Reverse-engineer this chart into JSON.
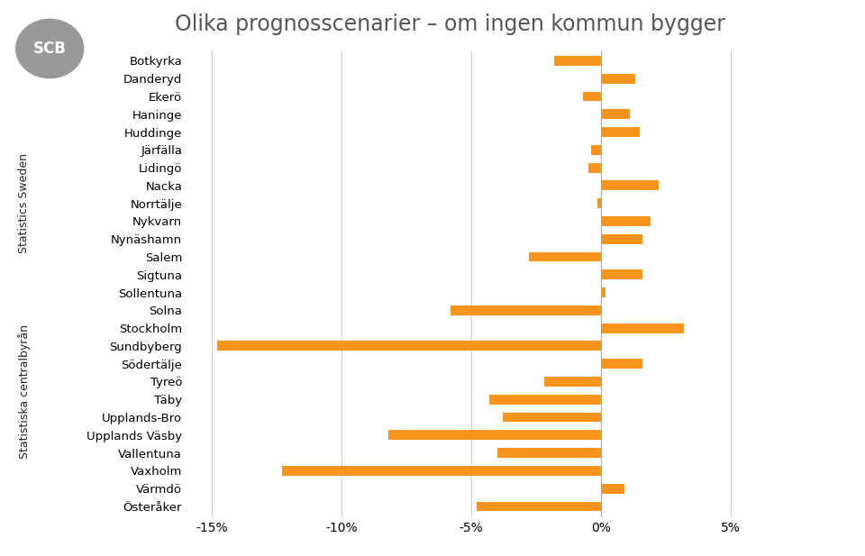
{
  "title": "Olika prognosscenarier – om ingen kommun bygger",
  "categories": [
    "Botkyrka",
    "Danderyd",
    "Ekerö",
    "Haninge",
    "Huddinge",
    "Järfälla",
    "Lidingö",
    "Nacka",
    "Norrtälje",
    "Nykvarn",
    "Nynäshamn",
    "Salem",
    "Sigtuna",
    "Sollentuna",
    "Solna",
    "Stockholm",
    "Sundbyberg",
    "Södertälje",
    "Tyreö",
    "Täby",
    "Upplands-Bro",
    "Upplands Väsby",
    "Vallentuna",
    "Vaxholm",
    "Värmdö",
    "Österåker"
  ],
  "values": [
    -1.8,
    1.3,
    -0.7,
    1.1,
    1.5,
    -0.4,
    -0.5,
    2.2,
    -0.15,
    1.9,
    1.6,
    -2.8,
    1.6,
    0.15,
    -5.8,
    3.2,
    -14.8,
    1.6,
    -2.2,
    -4.3,
    -3.8,
    -8.2,
    -4.0,
    -12.3,
    0.9,
    -4.8
  ],
  "bar_color": "#F7941D",
  "xlim": [
    -16.0,
    5.5
  ],
  "xtick_values": [
    -15,
    -10,
    -5,
    0,
    5
  ],
  "xtick_labels": [
    "-15%",
    "-10%",
    "-5%",
    "0%",
    "5%"
  ],
  "legend_colors": [
    "#F7941D",
    "#808080",
    "#1A8FA0",
    "#8A9A2A",
    "#7030A0"
  ],
  "background_color": "#FFFFFF",
  "title_color": "#555555",
  "title_fontsize": 17,
  "tick_fontsize": 10,
  "label_fontsize": 9.5
}
